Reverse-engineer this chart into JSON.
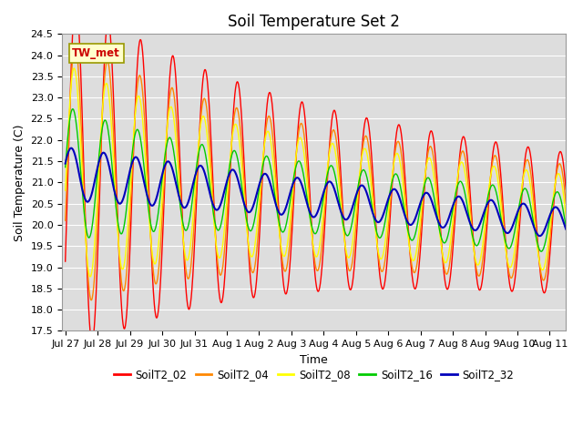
{
  "title": "Soil Temperature Set 2",
  "xlabel": "Time",
  "ylabel": "Soil Temperature (C)",
  "ylim": [
    17.5,
    24.5
  ],
  "annotation": "TW_met",
  "line_colors": {
    "SoilT2_02": "#ff0000",
    "SoilT2_04": "#ff8800",
    "SoilT2_08": "#ffff00",
    "SoilT2_16": "#00cc00",
    "SoilT2_32": "#0000bb"
  },
  "legend_order": [
    "SoilT2_02",
    "SoilT2_04",
    "SoilT2_08",
    "SoilT2_16",
    "SoilT2_32"
  ],
  "x_tick_labels": [
    "Jul 27",
    "Jul 28",
    "Jul 29",
    "Jul 30",
    "Jul 31",
    "Aug 1",
    "Aug 2",
    "Aug 3",
    "Aug 4",
    "Aug 5",
    "Aug 6",
    "Aug 7",
    "Aug 8",
    "Aug 9",
    "Aug 10",
    "Aug 11"
  ],
  "fig_facecolor": "#ffffff",
  "plot_bg_color": "#dddddd",
  "grid_color": "#ffffff",
  "title_fontsize": 12,
  "axis_label_fontsize": 9,
  "tick_fontsize": 8
}
